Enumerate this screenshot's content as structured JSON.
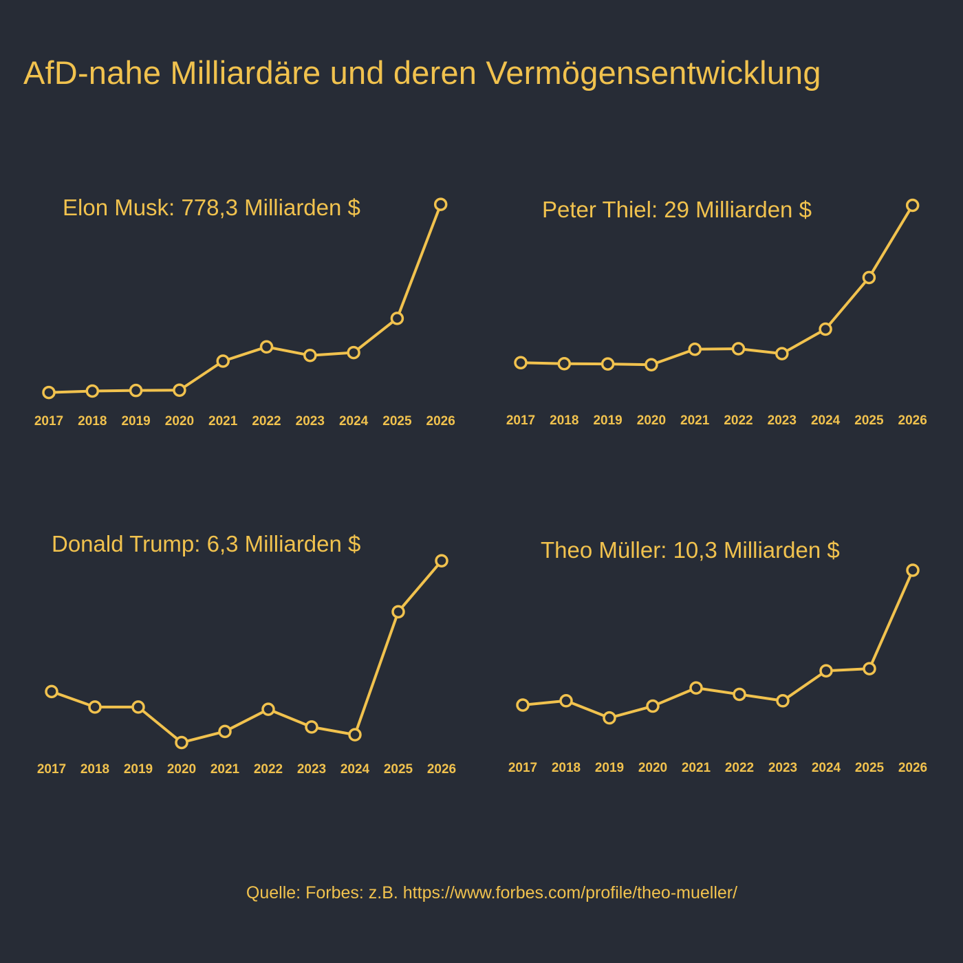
{
  "title": "AfD-nahe Milliardäre und deren Vermögensentwicklung",
  "source": "Quelle: Forbes: z.B. https://www.forbes.com/profile/theo-mueller/",
  "colors": {
    "background": "#272c36",
    "accent": "#f1c24e",
    "marker_fill": "#272c36"
  },
  "chart_data": [
    {
      "type": "line",
      "title": "Elon Musk: 778,3 Milliarden $",
      "categories": [
        "2017",
        "2018",
        "2019",
        "2020",
        "2021",
        "2022",
        "2023",
        "2024",
        "2025",
        "2026"
      ],
      "values": [
        0.03,
        0.035,
        0.037,
        0.038,
        0.14,
        0.19,
        0.16,
        0.17,
        0.29,
        0.69
      ],
      "ylim": [
        0,
        0.7
      ],
      "grid": false
    },
    {
      "type": "line",
      "title": "Peter Thiel: 29 Milliarden $",
      "categories": [
        "2017",
        "2018",
        "2019",
        "2020",
        "2021",
        "2022",
        "2023",
        "2024",
        "2025",
        "2026"
      ],
      "values": [
        0.17,
        0.166,
        0.165,
        0.162,
        0.222,
        0.224,
        0.205,
        0.3,
        0.5,
        0.78
      ],
      "ylim": [
        0,
        0.8
      ],
      "grid": false
    },
    {
      "type": "line",
      "title": "Donald Trump: 6,3 Milliarden $",
      "categories": [
        "2017",
        "2018",
        "2019",
        "2020",
        "2021",
        "2022",
        "2023",
        "2024",
        "2025",
        "2026"
      ],
      "values": [
        0.3,
        0.23,
        0.23,
        0.07,
        0.12,
        0.22,
        0.14,
        0.105,
        0.66,
        0.89
      ],
      "ylim": [
        0,
        0.9
      ],
      "grid": false
    },
    {
      "type": "line",
      "title": "Theo Müller: 10,3 Milliarden $",
      "categories": [
        "2017",
        "2018",
        "2019",
        "2020",
        "2021",
        "2022",
        "2023",
        "2024",
        "2025",
        "2026"
      ],
      "values": [
        0.18,
        0.2,
        0.12,
        0.175,
        0.26,
        0.23,
        0.2,
        0.34,
        0.35,
        0.81
      ],
      "ylim": [
        0,
        0.9
      ],
      "grid": false
    }
  ]
}
